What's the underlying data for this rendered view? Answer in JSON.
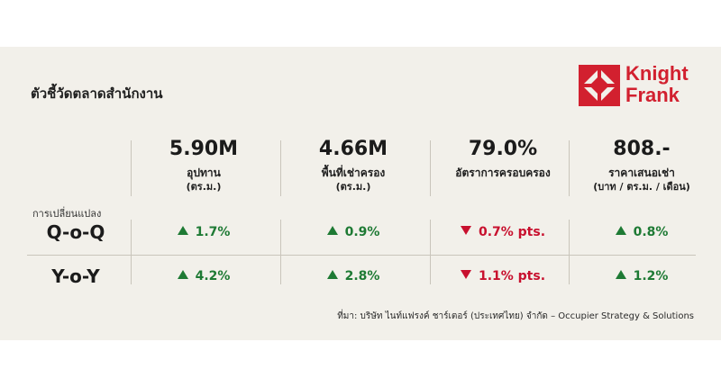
{
  "title": "ตัวชี้วัดตลาดสำนักงาน",
  "logo": {
    "line1": "Knight",
    "line2": "Frank",
    "icon": "knight-frank-logo-icon",
    "color": "#d2202f"
  },
  "metrics": [
    {
      "value": "5.90M",
      "label": "อุปทาน",
      "unit": "(ตร.ม.)"
    },
    {
      "value": "4.66M",
      "label": "พื้นที่เช่าครอง",
      "unit": "(ตร.ม.)"
    },
    {
      "value": "79.0%",
      "label": "อัตราการครอบครอง",
      "unit": ""
    },
    {
      "value": "808.-",
      "label": "ราคาเสนอเช่า",
      "unit": "(บาท / ตร.ม. / เดือน)"
    }
  ],
  "change_label": "การเปลี่ยนแปลง",
  "rows": [
    {
      "label": "Q-o-Q",
      "cells": [
        {
          "dir": "up",
          "text": "1.7%"
        },
        {
          "dir": "up",
          "text": "0.9%"
        },
        {
          "dir": "down",
          "text": "0.7% pts."
        },
        {
          "dir": "up",
          "text": "0.8%"
        }
      ]
    },
    {
      "label": "Y-o-Y",
      "cells": [
        {
          "dir": "up",
          "text": "4.2%"
        },
        {
          "dir": "up",
          "text": "2.8%"
        },
        {
          "dir": "down",
          "text": "1.1% pts."
        },
        {
          "dir": "up",
          "text": "1.2%"
        }
      ]
    }
  ],
  "source": "ที่มา: บริษัท ไนท์แฟรงค์ ชาร์เตอร์ (ประเทศไทย) จำกัด – Occupier Strategy & Solutions",
  "colors": {
    "up": "#1e7a34",
    "down": "#c8102e",
    "background": "#f2f0ea"
  }
}
